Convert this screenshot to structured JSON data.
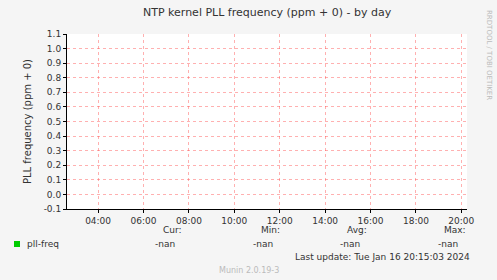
{
  "chart_data": {
    "type": "line",
    "title": "NTP kernel PLL frequency (ppm + 0) - by day",
    "y_label": "PLL frequency (ppm + 0)",
    "x": [],
    "series": [
      {
        "name": "pll-freq",
        "color": "#00cc00",
        "values": [],
        "stats": [
          "-nan",
          "-nan",
          "-nan",
          "-nan"
        ]
      }
    ],
    "stat_labels": [
      "Cur:",
      "Min:",
      "Avg:",
      "Max:"
    ],
    "xlim": [
      2.63,
      20.25
    ],
    "xticks": [
      {
        "value": 4,
        "label": "04:00"
      },
      {
        "value": 6,
        "label": "06:00"
      },
      {
        "value": 8,
        "label": "08:00"
      },
      {
        "value": 10,
        "label": "10:00"
      },
      {
        "value": 12,
        "label": "12:00"
      },
      {
        "value": 14,
        "label": "14:00"
      },
      {
        "value": 16,
        "label": "16:00"
      },
      {
        "value": 18,
        "label": "18:00"
      },
      {
        "value": 20,
        "label": "20:00"
      }
    ],
    "ylim": [
      -0.1,
      1.1
    ],
    "yticks": [
      -0.1,
      {
        "value": 0,
        "label": "0.0"
      },
      0.1,
      0.2,
      0.3,
      0.4,
      0.5,
      0.6,
      0.7,
      0.8,
      0.9,
      {
        "value": 1,
        "label": "1.0"
      },
      1.1
    ],
    "grid": true,
    "last_update": "Last update: Tue Jan 16 20:15:03 2024",
    "footer": "Munin 2.0.19-3",
    "side_text": "RRDTOOL / TOBI OETIKER"
  }
}
